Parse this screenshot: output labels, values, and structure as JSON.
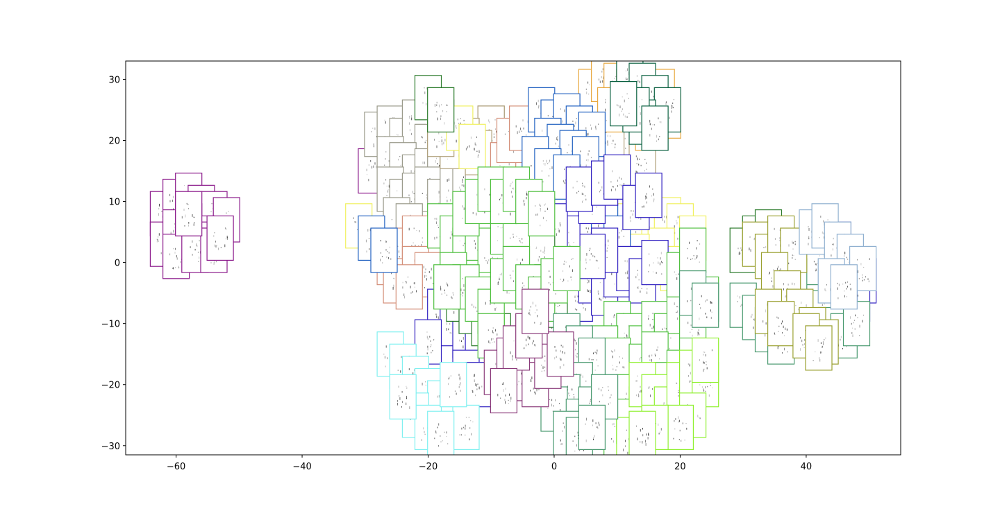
{
  "chart_data": {
    "type": "scatter",
    "title": "",
    "xlabel": "",
    "ylabel": "",
    "xlim": [
      -68,
      55
    ],
    "ylim": [
      -31.5,
      33
    ],
    "xticks": [
      -60,
      -40,
      -20,
      0,
      20,
      40
    ],
    "yticks": [
      -30,
      -20,
      -10,
      0,
      10,
      20,
      30
    ],
    "grid": false,
    "legend": "none",
    "marker": "spectrogram-thumbnail",
    "colors": {
      "purple": "#8b1a8b",
      "grey": "#9a9a8a",
      "tan": "#b0a07a",
      "salmon": "#d4907a",
      "orange": "#e8a840",
      "yellow": "#f0f060",
      "blue": "#2060c0",
      "indigo": "#3020c0",
      "dkgreen": "#2a7a2a",
      "teal": "#0a6040",
      "green": "#50c040",
      "lime": "#90f030",
      "seagreen": "#4a9a70",
      "olive": "#9aa030",
      "lightblue": "#90b0d0",
      "cyan": "#80f0f0",
      "plum": "#8a3a7a"
    },
    "series": [
      {
        "color": "purple",
        "points": [
          [
            -62,
            8
          ],
          [
            -60,
            10
          ],
          [
            -58,
            11
          ],
          [
            -56,
            9
          ],
          [
            -54,
            8
          ],
          [
            -52,
            7
          ],
          [
            -62,
            3
          ],
          [
            -60,
            5
          ],
          [
            -58,
            6
          ],
          [
            -56,
            4
          ],
          [
            -55,
            3
          ],
          [
            -60,
            1
          ],
          [
            -57,
            2
          ],
          [
            -54,
            2
          ],
          [
            -58,
            8
          ],
          [
            -53,
            4
          ],
          [
            -29,
            15
          ]
        ]
      },
      {
        "color": "grey",
        "points": [
          [
            -28,
            21
          ],
          [
            -26,
            22
          ],
          [
            -24,
            20
          ],
          [
            -22,
            23
          ],
          [
            -20,
            19
          ],
          [
            -18,
            22
          ],
          [
            -26,
            17
          ],
          [
            -24,
            16
          ],
          [
            -22,
            14
          ],
          [
            -20,
            15
          ],
          [
            -18,
            17
          ],
          [
            -16,
            16
          ],
          [
            -26,
            12
          ],
          [
            -24,
            10
          ],
          [
            -22,
            11
          ],
          [
            -20,
            12
          ],
          [
            -18,
            10
          ],
          [
            -16,
            12
          ],
          [
            -14,
            14
          ],
          [
            -12,
            12
          ],
          [
            -25,
            7
          ],
          [
            -23,
            6
          ],
          [
            -10,
            22
          ],
          [
            -8,
            8
          ],
          [
            -9,
            5
          ],
          [
            -10,
            3
          ],
          [
            -7,
            2
          ],
          [
            -5,
            4
          ],
          [
            -18,
            23
          ],
          [
            -16,
            20
          ]
        ]
      },
      {
        "color": "tan",
        "points": [
          [
            -10,
            22
          ],
          [
            -12,
            18
          ],
          [
            -14,
            20
          ],
          [
            -16,
            19
          ],
          [
            -18,
            21
          ],
          [
            10,
            17
          ],
          [
            12,
            20
          ],
          [
            14,
            16
          ],
          [
            9,
            21
          ],
          [
            11,
            27
          ]
        ]
      },
      {
        "color": "salmon",
        "points": [
          [
            -26,
            0
          ],
          [
            -24,
            2
          ],
          [
            -22,
            4
          ],
          [
            -25,
            -3
          ],
          [
            -22,
            -1
          ],
          [
            -20,
            -2
          ],
          [
            -23,
            -4
          ],
          [
            -6,
            18
          ],
          [
            -8,
            16
          ],
          [
            -4,
            15
          ],
          [
            -7,
            20
          ],
          [
            -5,
            22
          ]
        ]
      },
      {
        "color": "orange",
        "points": [
          [
            6,
            28
          ],
          [
            8,
            30
          ],
          [
            10,
            29
          ],
          [
            12,
            28
          ],
          [
            14,
            27
          ],
          [
            16,
            25
          ],
          [
            18,
            24
          ],
          [
            17,
            28
          ],
          [
            15,
            22
          ],
          [
            9,
            25
          ]
        ]
      },
      {
        "color": "yellow",
        "points": [
          [
            -31,
            6
          ],
          [
            -15,
            22
          ],
          [
            -13,
            19
          ],
          [
            10,
            8
          ],
          [
            12,
            6
          ],
          [
            14,
            4
          ],
          [
            16,
            5
          ],
          [
            18,
            7
          ],
          [
            20,
            6
          ],
          [
            22,
            4
          ],
          [
            17,
            2
          ],
          [
            15,
            0
          ],
          [
            13,
            1
          ],
          [
            19,
            -1
          ]
        ]
      },
      {
        "color": "blue",
        "points": [
          [
            -2,
            25
          ],
          [
            0,
            23
          ],
          [
            2,
            24
          ],
          [
            4,
            22
          ],
          [
            6,
            21
          ],
          [
            -1,
            20
          ],
          [
            1,
            19
          ],
          [
            3,
            18
          ],
          [
            5,
            17
          ],
          [
            -3,
            17
          ],
          [
            -1,
            15
          ],
          [
            2,
            14
          ],
          [
            -29,
            4
          ],
          [
            -27,
            2
          ],
          [
            -2,
            7
          ],
          [
            4,
            5
          ],
          [
            6,
            4
          ],
          [
            8,
            6
          ],
          [
            10,
            4
          ]
        ]
      },
      {
        "color": "indigo",
        "points": [
          [
            -18,
            -8
          ],
          [
            -16,
            -10
          ],
          [
            -14,
            -12
          ],
          [
            -12,
            -14
          ],
          [
            -10,
            -16
          ],
          [
            -20,
            -13
          ],
          [
            -14,
            -18
          ],
          [
            -12,
            -20
          ],
          [
            -2,
            -10
          ],
          [
            0,
            -12
          ],
          [
            2,
            -8
          ],
          [
            4,
            -6
          ],
          [
            6,
            -3
          ],
          [
            8,
            -5
          ],
          [
            10,
            -2
          ],
          [
            12,
            -1
          ],
          [
            14,
            -3
          ],
          [
            16,
            0
          ],
          [
            8,
            2
          ],
          [
            6,
            1
          ],
          [
            45,
            3
          ],
          [
            47,
            0
          ],
          [
            49,
            -3
          ],
          [
            48,
            -6
          ],
          [
            46,
            -5
          ],
          [
            44,
            -2
          ],
          [
            2,
            4
          ],
          [
            0,
            6
          ],
          [
            6,
            10
          ],
          [
            4,
            12
          ],
          [
            8,
            13
          ],
          [
            10,
            14
          ],
          [
            13,
            9
          ],
          [
            15,
            11
          ]
        ]
      },
      {
        "color": "dkgreen",
        "points": [
          [
            -20,
            27
          ],
          [
            -18,
            25
          ],
          [
            -15,
            -6
          ],
          [
            -13,
            -8
          ],
          [
            -11,
            -10
          ],
          [
            -9,
            -12
          ],
          [
            -4,
            -2
          ],
          [
            -2,
            1
          ],
          [
            -1,
            -4
          ],
          [
            0,
            -7
          ],
          [
            30,
            2
          ],
          [
            32,
            4
          ],
          [
            34,
            5
          ]
        ]
      },
      {
        "color": "teal",
        "points": [
          [
            12,
            30
          ],
          [
            14,
            29
          ],
          [
            16,
            27
          ],
          [
            18,
            25
          ],
          [
            14,
            23
          ],
          [
            13,
            25
          ],
          [
            16,
            22
          ],
          [
            11,
            26
          ]
        ]
      },
      {
        "color": "green",
        "points": [
          [
            -18,
            6
          ],
          [
            -16,
            4
          ],
          [
            -14,
            2
          ],
          [
            -12,
            4
          ],
          [
            -10,
            2
          ],
          [
            -8,
            5
          ],
          [
            -6,
            3
          ],
          [
            -14,
            8
          ],
          [
            -12,
            10
          ],
          [
            -10,
            12
          ],
          [
            -8,
            10
          ],
          [
            -6,
            12
          ],
          [
            -4,
            10
          ],
          [
            -2,
            8
          ],
          [
            -16,
            -2
          ],
          [
            -14,
            -4
          ],
          [
            -12,
            -6
          ],
          [
            -10,
            -8
          ],
          [
            -8,
            -3
          ],
          [
            -6,
            -1
          ],
          [
            -4,
            -4
          ],
          [
            -2,
            -6
          ],
          [
            0,
            -3
          ],
          [
            2,
            -1
          ],
          [
            10,
            -10
          ],
          [
            12,
            -12
          ],
          [
            14,
            -14
          ],
          [
            16,
            -10
          ],
          [
            18,
            -12
          ],
          [
            20,
            -8
          ],
          [
            22,
            -10
          ],
          [
            24,
            -6
          ],
          [
            8,
            -14
          ],
          [
            10,
            -16
          ],
          [
            14,
            -17
          ],
          [
            16,
            -15
          ],
          [
            18,
            -20
          ],
          [
            20,
            -18
          ],
          [
            22,
            -16
          ],
          [
            20,
            -2
          ],
          [
            22,
            2
          ],
          [
            -17,
            -4
          ],
          [
            -10,
            -12
          ],
          [
            4,
            -16
          ],
          [
            6,
            -18
          ],
          [
            12,
            -22
          ],
          [
            14,
            -24
          ],
          [
            8,
            -26
          ],
          [
            10,
            -28
          ],
          [
            12,
            -26
          ],
          [
            16,
            -24
          ],
          [
            18,
            -27
          ],
          [
            20,
            -25
          ]
        ]
      },
      {
        "color": "lime",
        "points": [
          [
            14,
            -20
          ],
          [
            16,
            -22
          ],
          [
            18,
            -24
          ],
          [
            20,
            -20
          ],
          [
            22,
            -18
          ],
          [
            24,
            -20
          ],
          [
            22,
            -25
          ],
          [
            20,
            -27
          ],
          [
            24,
            -16
          ],
          [
            16,
            -27
          ],
          [
            12,
            -29
          ],
          [
            14,
            -28
          ]
        ]
      },
      {
        "color": "seagreen",
        "points": [
          [
            2,
            -12
          ],
          [
            4,
            -14
          ],
          [
            6,
            -16
          ],
          [
            4,
            -20
          ],
          [
            2,
            -22
          ],
          [
            0,
            -24
          ],
          [
            4,
            -26
          ],
          [
            6,
            -24
          ],
          [
            8,
            -22
          ],
          [
            2,
            -28
          ],
          [
            4,
            -29
          ],
          [
            6,
            -27
          ],
          [
            22,
            -5
          ],
          [
            24,
            -7
          ],
          [
            30,
            -7
          ],
          [
            32,
            -9
          ],
          [
            34,
            -11
          ],
          [
            36,
            -13
          ],
          [
            38,
            -9
          ],
          [
            40,
            -5
          ],
          [
            42,
            -7
          ],
          [
            44,
            -11
          ],
          [
            46,
            -12
          ],
          [
            48,
            -10
          ],
          [
            40,
            -1
          ],
          [
            42,
            0
          ],
          [
            36,
            -6
          ],
          [
            38,
            -3
          ]
        ]
      },
      {
        "color": "olive",
        "points": [
          [
            32,
            3
          ],
          [
            34,
            1
          ],
          [
            36,
            4
          ],
          [
            38,
            2
          ],
          [
            35,
            -2
          ],
          [
            37,
            -5
          ],
          [
            39,
            -8
          ],
          [
            41,
            -11
          ],
          [
            43,
            -13
          ],
          [
            34,
            -8
          ],
          [
            36,
            -10
          ],
          [
            40,
            -12
          ],
          [
            42,
            -14
          ]
        ]
      },
      {
        "color": "lightblue",
        "points": [
          [
            41,
            5
          ],
          [
            43,
            6
          ],
          [
            45,
            3
          ],
          [
            47,
            1
          ],
          [
            49,
            -1
          ],
          [
            44,
            -3
          ],
          [
            46,
            -4
          ]
        ]
      },
      {
        "color": "cyan",
        "points": [
          [
            -26,
            -15
          ],
          [
            -24,
            -17
          ],
          [
            -22,
            -19
          ],
          [
            -20,
            -21
          ],
          [
            -18,
            -23
          ],
          [
            -16,
            -25
          ],
          [
            -14,
            -27
          ],
          [
            -22,
            -25
          ],
          [
            -20,
            -27
          ],
          [
            -18,
            -28
          ],
          [
            -24,
            -22
          ],
          [
            -16,
            -20
          ]
        ]
      },
      {
        "color": "plum",
        "points": [
          [
            -9,
            -18
          ],
          [
            -7,
            -16
          ],
          [
            -5,
            -19
          ],
          [
            -3,
            -20
          ],
          [
            -1,
            -17
          ],
          [
            1,
            -15
          ],
          [
            -6,
            -14
          ],
          [
            -4,
            -12
          ],
          [
            -8,
            -21
          ],
          [
            -3,
            -8
          ]
        ]
      }
    ]
  }
}
